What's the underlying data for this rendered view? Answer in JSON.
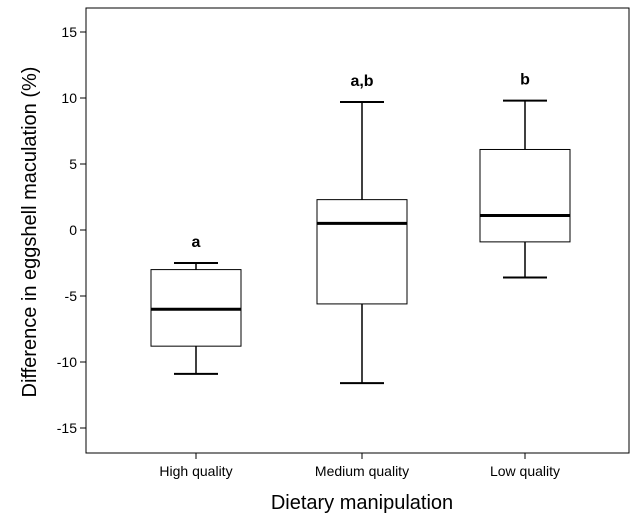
{
  "chart_data": {
    "type": "boxplot",
    "xlabel": "Dietary manipulation",
    "ylabel": "Difference in eggshell  maculation (%)",
    "ylim": [
      -17,
      16.5
    ],
    "yticks": [
      15,
      10,
      5,
      0,
      -5,
      -10,
      -15
    ],
    "ytick_labels": [
      "15",
      "10",
      "5",
      "0",
      "-5",
      "-10",
      "-15"
    ],
    "categories": [
      "High quality",
      "Medium quality",
      "Low quality"
    ],
    "boxes": [
      {
        "category": "High quality",
        "whisker_low": -10.9,
        "q1": -8.8,
        "median": -6.0,
        "q3": -3.0,
        "whisker_high": -2.5,
        "label": "a"
      },
      {
        "category": "Medium quality",
        "whisker_low": -11.6,
        "q1": -5.6,
        "median": 0.5,
        "q3": 2.3,
        "whisker_high": 9.7,
        "label": "a,b"
      },
      {
        "category": "Low quality",
        "whisker_low": -3.6,
        "q1": -0.9,
        "median": 1.1,
        "q3": 6.1,
        "whisker_high": 9.8,
        "label": "b"
      }
    ],
    "grid": false,
    "legend": "none"
  }
}
